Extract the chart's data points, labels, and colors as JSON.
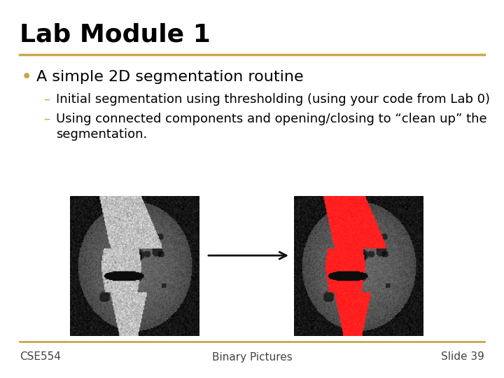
{
  "title": "Lab Module 1",
  "title_fontsize": 26,
  "title_color": "#000000",
  "title_bold": true,
  "header_line_color": "#C9A84C",
  "footer_line_color": "#C9A84C",
  "bullet_text": "A simple 2D segmentation routine",
  "bullet_fontsize": 16,
  "sub_bullet1": "Initial segmentation using thresholding (using your code from Lab 0)",
  "sub_bullet2_line1": "Using connected components and opening/closing to “clean up” the",
  "sub_bullet2_line2": "segmentation.",
  "sub_bullet_fontsize": 13,
  "bullet_color": "#000000",
  "sub_bullet_color": "#000000",
  "bullet_marker_color": "#C9A84C",
  "sub_bullet_marker_color": "#C9A84C",
  "footer_left": "CSE554",
  "footer_center": "Binary Pictures",
  "footer_right": "Slide 39",
  "footer_fontsize": 11,
  "background_color": "#ffffff",
  "arrow_color": "#111111"
}
